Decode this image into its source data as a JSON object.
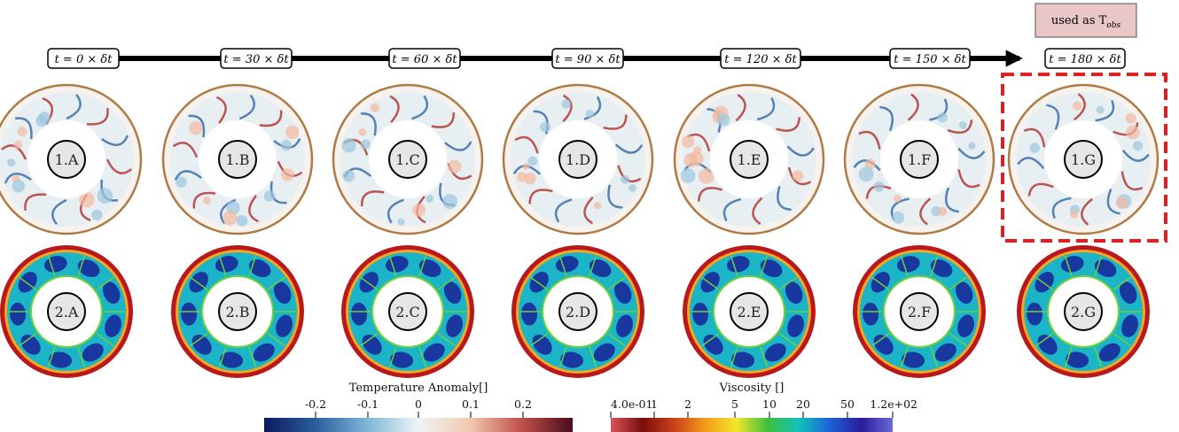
{
  "timeline": {
    "labels": [
      "t = 0 × δt",
      "t = 30 × δt",
      "t = 60 × δt",
      "t = 90 × δt",
      "t = 120 × δt",
      "t = 150 × δt",
      "t = 180 × δt"
    ],
    "obs_note": "used as T",
    "obs_sub": "obs"
  },
  "row1": {
    "labels": [
      "1.A",
      "1.B",
      "1.C",
      "1.D",
      "1.E",
      "1.F",
      "1.G"
    ]
  },
  "row2": {
    "labels": [
      "2.A",
      "2.B",
      "2.C",
      "2.D",
      "2.E",
      "2.F",
      "2.G"
    ]
  },
  "colorbars": [
    {
      "title": "Temperature Anomaly[]",
      "ticks": [
        "-0.2",
        "-0.1",
        "0",
        "0.1",
        "0.2"
      ],
      "stops": [
        "#0b1a5c",
        "#2a5e9e",
        "#7fb6d6",
        "#eef4f6",
        "#f2c9b0",
        "#c0504a",
        "#4a0c1e"
      ]
    },
    {
      "title": "Viscosity []",
      "ticks": [
        "4.0e-01",
        "1",
        "2",
        "5",
        "10",
        "20",
        "50",
        "1.2e+02"
      ],
      "stops": [
        "#d8545a",
        "#7a0d0d",
        "#c84018",
        "#f39a18",
        "#f5e62b",
        "#3fbf3c",
        "#11c2b9",
        "#1e5fd8",
        "#2a1c9a",
        "#6a6ad8"
      ]
    }
  ],
  "colors": {
    "highlight": "#e02020",
    "note_fill": "#e8c7c6",
    "temp_bg": "#e7eff3",
    "visc_ring": "#b9191a",
    "visc_inner": "#1bb5c7",
    "visc_blue": "#1a2a9a"
  }
}
